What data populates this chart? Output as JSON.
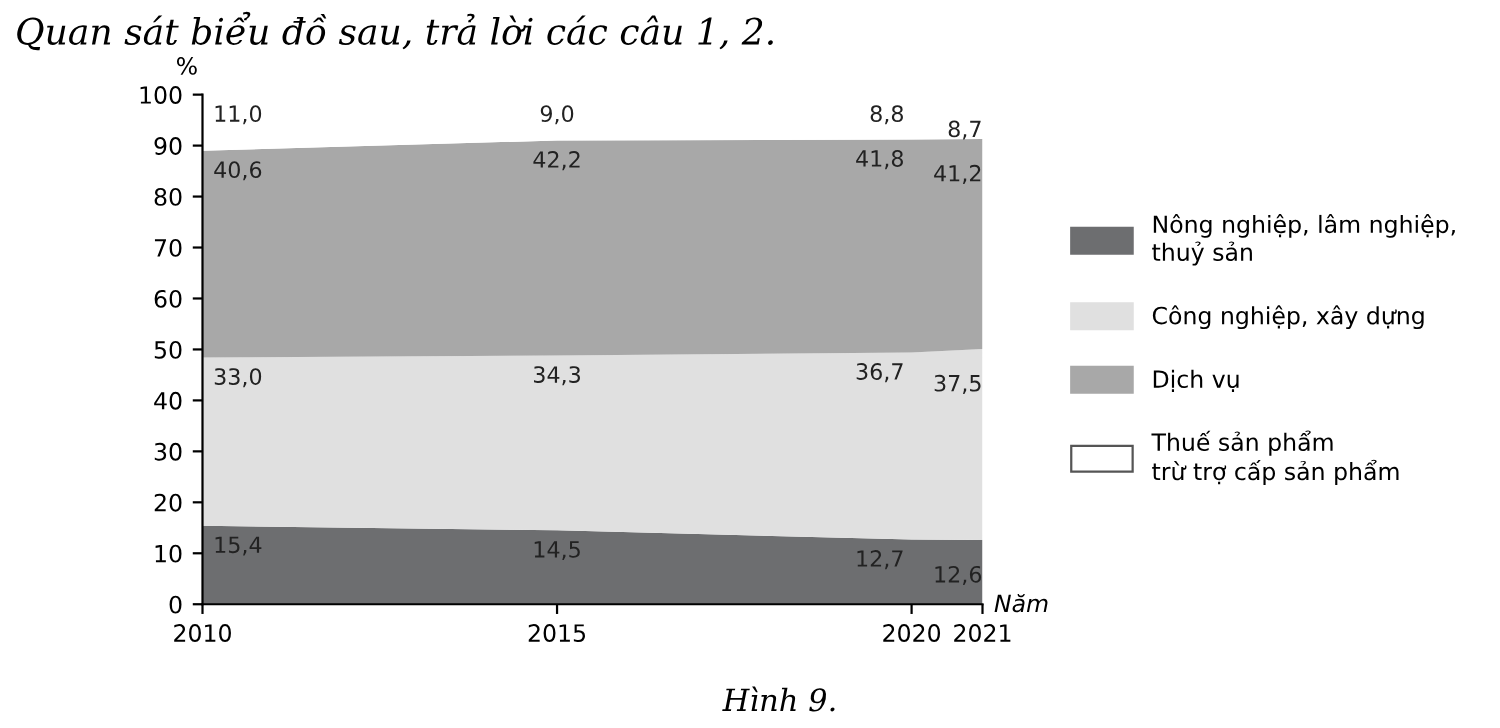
{
  "chart_data": {
    "type": "area",
    "stacked": true,
    "title": "Quan sát biểu đồ sau, trả lời các câu 1, 2.",
    "ylabel": "%",
    "xlabel": "Năm",
    "annotations": [
      "Hình 9."
    ],
    "x": [
      2010,
      2015,
      2020,
      2021
    ],
    "xlim": [
      2010,
      2021
    ],
    "xticks": [
      2010,
      2015,
      2020,
      2021
    ],
    "ylim": [
      0,
      100
    ],
    "yticks": [
      0,
      10,
      20,
      30,
      40,
      50,
      60,
      70,
      80,
      90,
      100
    ],
    "grid": false,
    "legend": "right",
    "series": [
      {
        "name": "Nông nghiệp, lâm nghiệp,\nthuỷ sản",
        "color": "#6d6e70",
        "values": [
          15.4,
          14.5,
          12.7,
          12.6
        ],
        "value_labels": [
          "15,4",
          "14,5",
          "12,7",
          "12,6"
        ]
      },
      {
        "name": "Công nghiệp, xây dựng",
        "color": "#e0e0e0",
        "values": [
          33.0,
          34.3,
          36.7,
          37.5
        ],
        "value_labels": [
          "33,0",
          "34,3",
          "36,7",
          "37,5"
        ]
      },
      {
        "name": "Dịch vụ",
        "color": "#a8a8a8",
        "values": [
          40.6,
          42.2,
          41.8,
          41.2
        ],
        "value_labels": [
          "40,6",
          "42,2",
          "41,8",
          "41,2"
        ]
      },
      {
        "name": "Thuế sản phẩm\ntrừ trợ cấp sản phẩm",
        "color": "#ffffff",
        "values": [
          11.0,
          9.0,
          8.8,
          8.7
        ],
        "value_labels": [
          "11,0",
          "9,0",
          "8,8",
          "8,7"
        ]
      }
    ]
  }
}
